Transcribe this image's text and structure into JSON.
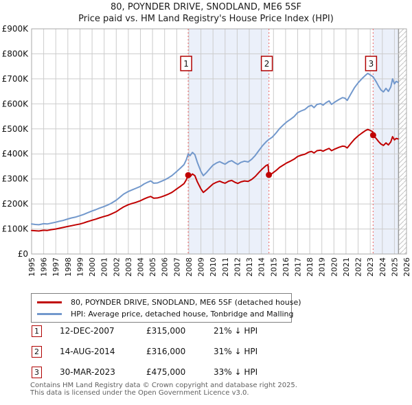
{
  "chart_data": {
    "type": "line",
    "title": "80, POYNDER DRIVE, SNODLAND, ME6 5SF",
    "subtitle": "Price paid vs. HM Land Registry's House Price Index (HPI)",
    "x_range": [
      1995,
      2026
    ],
    "y_range_k": [
      0,
      900
    ],
    "y_values_unit": "GBP thousands",
    "grid": true,
    "legend_position": "below",
    "x_tick_labels": [
      "1995",
      "1996",
      "1997",
      "1998",
      "1999",
      "2000",
      "2001",
      "2002",
      "2003",
      "2004",
      "2005",
      "2006",
      "2007",
      "2008",
      "2009",
      "2010",
      "2011",
      "2012",
      "2013",
      "2014",
      "2015",
      "2016",
      "2017",
      "2018",
      "2019",
      "2020",
      "2021",
      "2022",
      "2023",
      "2024",
      "2025",
      "2026"
    ],
    "y_tick_labels": [
      "£0",
      "£100K",
      "£200K",
      "£300K",
      "£400K",
      "£500K",
      "£600K",
      "£700K",
      "£800K",
      "£900K"
    ],
    "colors": {
      "grid": "#cccccc",
      "border": "#a8a8a8",
      "band_fill": "#ebf0fa",
      "hatch_line": "#c4c4c4",
      "marker_line": "#ee7777",
      "marker_box_border": "#b00000"
    },
    "series": [
      {
        "id": "price-paid",
        "name": "80, POYNDER DRIVE, SNODLAND, ME6 5SF (detached house)",
        "color": "#c00000",
        "points": [
          [
            1995.0,
            94
          ],
          [
            1995.3,
            93
          ],
          [
            1995.6,
            92
          ],
          [
            1996.0,
            95
          ],
          [
            1996.3,
            94
          ],
          [
            1996.6,
            97
          ],
          [
            1997.0,
            100
          ],
          [
            1997.3,
            103
          ],
          [
            1997.6,
            106
          ],
          [
            1998.0,
            110
          ],
          [
            1998.3,
            113
          ],
          [
            1998.6,
            116
          ],
          [
            1999.0,
            120
          ],
          [
            1999.3,
            124
          ],
          [
            1999.6,
            129
          ],
          [
            2000.0,
            135
          ],
          [
            2000.3,
            139
          ],
          [
            2000.6,
            144
          ],
          [
            2001.0,
            150
          ],
          [
            2001.3,
            154
          ],
          [
            2001.6,
            160
          ],
          [
            2002.0,
            169
          ],
          [
            2002.3,
            179
          ],
          [
            2002.6,
            188
          ],
          [
            2003.0,
            197
          ],
          [
            2003.3,
            202
          ],
          [
            2003.6,
            206
          ],
          [
            2004.0,
            213
          ],
          [
            2004.3,
            220
          ],
          [
            2004.6,
            226
          ],
          [
            2004.85,
            230
          ],
          [
            2005.1,
            223
          ],
          [
            2005.4,
            224
          ],
          [
            2005.7,
            228
          ],
          [
            2006.0,
            233
          ],
          [
            2006.3,
            239
          ],
          [
            2006.6,
            246
          ],
          [
            2007.0,
            260
          ],
          [
            2007.3,
            270
          ],
          [
            2007.6,
            281
          ],
          [
            2007.8,
            297
          ],
          [
            2007.95,
            315
          ],
          [
            2008.1,
            309
          ],
          [
            2008.3,
            320
          ],
          [
            2008.5,
            313
          ],
          [
            2008.7,
            289
          ],
          [
            2009.0,
            260
          ],
          [
            2009.2,
            246
          ],
          [
            2009.45,
            256
          ],
          [
            2009.7,
            267
          ],
          [
            2010.0,
            280
          ],
          [
            2010.3,
            287
          ],
          [
            2010.55,
            291
          ],
          [
            2010.8,
            286
          ],
          [
            2011.0,
            283
          ],
          [
            2011.3,
            291
          ],
          [
            2011.55,
            294
          ],
          [
            2011.8,
            287
          ],
          [
            2012.05,
            282
          ],
          [
            2012.3,
            288
          ],
          [
            2012.6,
            292
          ],
          [
            2012.9,
            290
          ],
          [
            2013.2,
            298
          ],
          [
            2013.5,
            310
          ],
          [
            2013.8,
            326
          ],
          [
            2014.1,
            341
          ],
          [
            2014.4,
            354
          ],
          [
            2014.55,
            357
          ],
          [
            2014.62,
            316
          ],
          [
            2014.9,
            322
          ],
          [
            2015.2,
            333
          ],
          [
            2015.5,
            346
          ],
          [
            2015.8,
            355
          ],
          [
            2016.1,
            364
          ],
          [
            2016.4,
            371
          ],
          [
            2016.7,
            379
          ],
          [
            2017.0,
            390
          ],
          [
            2017.3,
            395
          ],
          [
            2017.6,
            399
          ],
          [
            2017.9,
            407
          ],
          [
            2018.15,
            410
          ],
          [
            2018.35,
            404
          ],
          [
            2018.6,
            413
          ],
          [
            2018.9,
            415
          ],
          [
            2019.1,
            411
          ],
          [
            2019.35,
            417
          ],
          [
            2019.6,
            422
          ],
          [
            2019.8,
            413
          ],
          [
            2020.1,
            420
          ],
          [
            2020.4,
            426
          ],
          [
            2020.7,
            431
          ],
          [
            2020.9,
            430
          ],
          [
            2021.1,
            424
          ],
          [
            2021.4,
            442
          ],
          [
            2021.7,
            459
          ],
          [
            2022.0,
            472
          ],
          [
            2022.3,
            483
          ],
          [
            2022.6,
            493
          ],
          [
            2022.8,
            498
          ],
          [
            2023.0,
            494
          ],
          [
            2023.2,
            489
          ],
          [
            2023.24,
            475
          ],
          [
            2023.5,
            461
          ],
          [
            2023.7,
            449
          ],
          [
            2023.9,
            439
          ],
          [
            2024.1,
            434
          ],
          [
            2024.3,
            444
          ],
          [
            2024.5,
            436
          ],
          [
            2024.7,
            448
          ],
          [
            2024.85,
            469
          ],
          [
            2025.0,
            456
          ],
          [
            2025.15,
            462
          ],
          [
            2025.3,
            460
          ]
        ]
      },
      {
        "id": "hpi",
        "name": "HPI: Average price, detached house, Tonbridge and Malling",
        "color": "#7298cc",
        "points": [
          [
            1995.0,
            120
          ],
          [
            1995.3,
            118
          ],
          [
            1995.6,
            117
          ],
          [
            1996.0,
            121
          ],
          [
            1996.3,
            120
          ],
          [
            1996.6,
            123
          ],
          [
            1997.0,
            127
          ],
          [
            1997.3,
            131
          ],
          [
            1997.6,
            134
          ],
          [
            1998.0,
            140
          ],
          [
            1998.3,
            144
          ],
          [
            1998.6,
            147
          ],
          [
            1999.0,
            153
          ],
          [
            1999.3,
            158
          ],
          [
            1999.6,
            164
          ],
          [
            2000.0,
            172
          ],
          [
            2000.3,
            177
          ],
          [
            2000.6,
            183
          ],
          [
            2001.0,
            190
          ],
          [
            2001.3,
            196
          ],
          [
            2001.6,
            203
          ],
          [
            2002.0,
            215
          ],
          [
            2002.3,
            227
          ],
          [
            2002.6,
            239
          ],
          [
            2003.0,
            250
          ],
          [
            2003.3,
            256
          ],
          [
            2003.6,
            262
          ],
          [
            2004.0,
            270
          ],
          [
            2004.3,
            280
          ],
          [
            2004.6,
            287
          ],
          [
            2004.85,
            292
          ],
          [
            2005.1,
            283
          ],
          [
            2005.4,
            284
          ],
          [
            2005.7,
            290
          ],
          [
            2006.0,
            296
          ],
          [
            2006.3,
            304
          ],
          [
            2006.6,
            313
          ],
          [
            2007.0,
            330
          ],
          [
            2007.3,
            343
          ],
          [
            2007.6,
            357
          ],
          [
            2007.8,
            377
          ],
          [
            2007.95,
            400
          ],
          [
            2008.1,
            393
          ],
          [
            2008.3,
            406
          ],
          [
            2008.5,
            397
          ],
          [
            2008.7,
            367
          ],
          [
            2009.0,
            330
          ],
          [
            2009.2,
            313
          ],
          [
            2009.45,
            325
          ],
          [
            2009.7,
            339
          ],
          [
            2010.0,
            355
          ],
          [
            2010.3,
            364
          ],
          [
            2010.55,
            369
          ],
          [
            2010.8,
            363
          ],
          [
            2011.0,
            359
          ],
          [
            2011.3,
            369
          ],
          [
            2011.55,
            373
          ],
          [
            2011.8,
            365
          ],
          [
            2012.05,
            358
          ],
          [
            2012.3,
            366
          ],
          [
            2012.6,
            371
          ],
          [
            2012.9,
            368
          ],
          [
            2013.2,
            379
          ],
          [
            2013.5,
            394
          ],
          [
            2013.8,
            414
          ],
          [
            2014.1,
            433
          ],
          [
            2014.4,
            449
          ],
          [
            2014.62,
            458
          ],
          [
            2014.9,
            467
          ],
          [
            2015.2,
            483
          ],
          [
            2015.5,
            501
          ],
          [
            2015.8,
            515
          ],
          [
            2016.1,
            528
          ],
          [
            2016.4,
            538
          ],
          [
            2016.7,
            549
          ],
          [
            2017.0,
            565
          ],
          [
            2017.3,
            572
          ],
          [
            2017.6,
            578
          ],
          [
            2017.9,
            590
          ],
          [
            2018.15,
            594
          ],
          [
            2018.35,
            585
          ],
          [
            2018.6,
            598
          ],
          [
            2018.9,
            601
          ],
          [
            2019.1,
            595
          ],
          [
            2019.35,
            605
          ],
          [
            2019.6,
            612
          ],
          [
            2019.8,
            598
          ],
          [
            2020.1,
            608
          ],
          [
            2020.4,
            617
          ],
          [
            2020.7,
            625
          ],
          [
            2020.9,
            623
          ],
          [
            2021.1,
            614
          ],
          [
            2021.4,
            640
          ],
          [
            2021.7,
            665
          ],
          [
            2022.0,
            684
          ],
          [
            2022.3,
            700
          ],
          [
            2022.6,
            714
          ],
          [
            2022.8,
            722
          ],
          [
            2023.0,
            716
          ],
          [
            2023.24,
            708
          ],
          [
            2023.5,
            688
          ],
          [
            2023.7,
            670
          ],
          [
            2023.9,
            655
          ],
          [
            2024.1,
            648
          ],
          [
            2024.3,
            662
          ],
          [
            2024.5,
            650
          ],
          [
            2024.7,
            668
          ],
          [
            2024.85,
            700
          ],
          [
            2025.0,
            680
          ],
          [
            2025.15,
            690
          ],
          [
            2025.3,
            686
          ]
        ]
      }
    ],
    "sale_markers": [
      {
        "label": "1",
        "x": 2007.95,
        "y": 315
      },
      {
        "label": "2",
        "x": 2014.62,
        "y": 316
      },
      {
        "label": "3",
        "x": 2023.24,
        "y": 475
      }
    ],
    "shaded_bands": [
      [
        2007.95,
        2014.62
      ],
      [
        2023.24,
        2025.34
      ]
    ],
    "hatched_band": [
      2025.34,
      2026
    ]
  },
  "sales_table": {
    "rows": [
      {
        "label": "1",
        "date": "12-DEC-2007",
        "price": "£315,000",
        "hpi_note": "21% ↓ HPI"
      },
      {
        "label": "2",
        "date": "14-AUG-2014",
        "price": "£316,000",
        "hpi_note": "31% ↓ HPI"
      },
      {
        "label": "3",
        "date": "30-MAR-2023",
        "price": "£475,000",
        "hpi_note": "33% ↓ HPI"
      }
    ]
  },
  "footer": {
    "line1": "Contains HM Land Registry data © Crown copyright and database right 2025.",
    "line2": "This data is licensed under the Open Government Licence v3.0."
  }
}
